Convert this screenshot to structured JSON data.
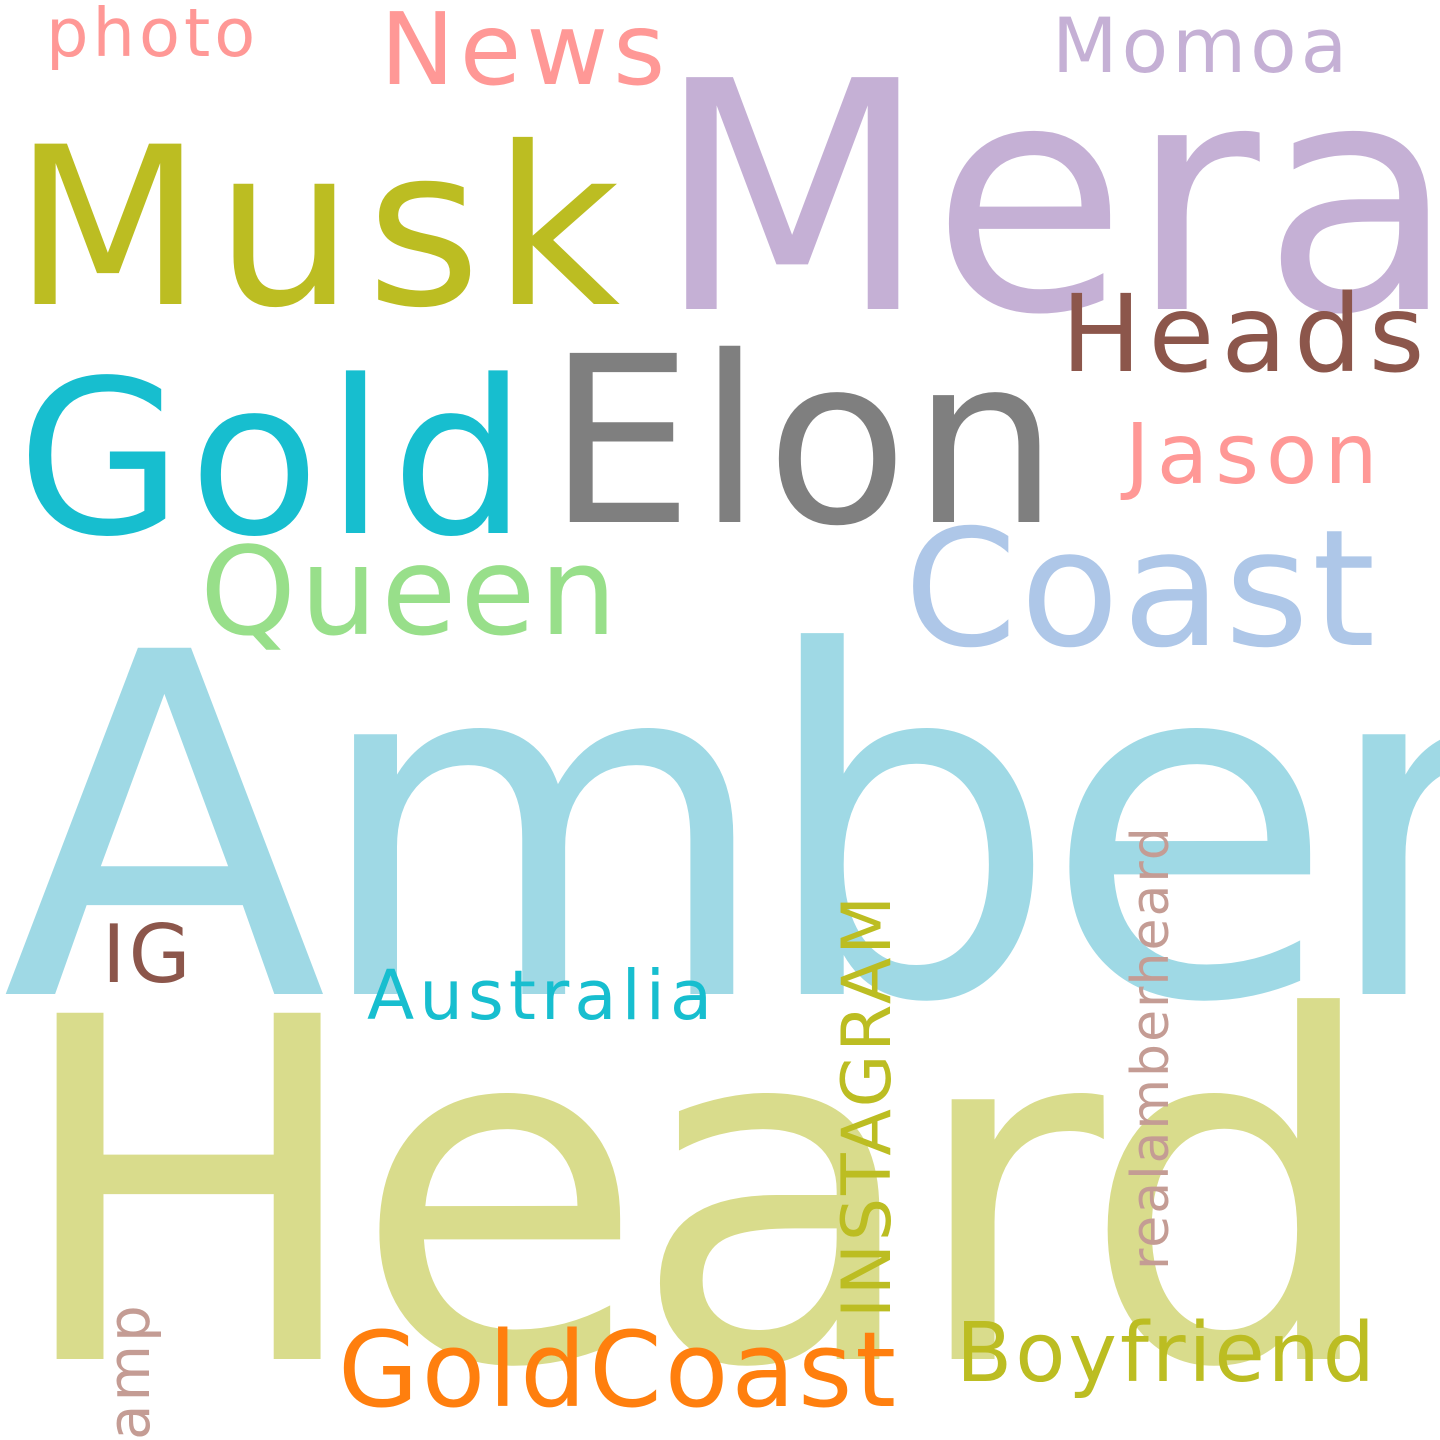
{
  "cloud": {
    "background": "#ffffff",
    "words": {
      "amber": {
        "text": "Amber",
        "color": "#9fd9e5"
      },
      "heard": {
        "text": "Heard",
        "color": "#d9dc8c"
      },
      "mera": {
        "text": "Mera",
        "color": "#c5b0d5"
      },
      "gold": {
        "text": "Gold",
        "color": "#17becf"
      },
      "elon": {
        "text": "Elon",
        "color": "#7f7f7f"
      },
      "musk": {
        "text": "Musk",
        "color": "#bcbd22"
      },
      "coast": {
        "text": "Coast",
        "color": "#aec7e8"
      },
      "queen": {
        "text": "Queen",
        "color": "#98df8a"
      },
      "heads": {
        "text": "Heads",
        "color": "#8c564b"
      },
      "jason": {
        "text": "Jason",
        "color": "#ff9896"
      },
      "news": {
        "text": "News",
        "color": "#ff9896"
      },
      "momoa": {
        "text": "Momoa",
        "color": "#c5b0d5"
      },
      "photo": {
        "text": "photo",
        "color": "#ff9896"
      },
      "goldcoast": {
        "text": "GoldCoast",
        "color": "#ff7f0e"
      },
      "boyfriend": {
        "text": "Boyfriend",
        "color": "#bcbd22"
      },
      "australia": {
        "text": "Australia",
        "color": "#17becf"
      },
      "ig": {
        "text": "IG",
        "color": "#8c564b"
      },
      "instagram": {
        "text": "INSTAGRAM",
        "color": "#bcbd22"
      },
      "realamberheard": {
        "text": "realamberheard",
        "color": "#c49c94"
      },
      "amp": {
        "text": "amp",
        "color": "#c49c94"
      }
    }
  }
}
